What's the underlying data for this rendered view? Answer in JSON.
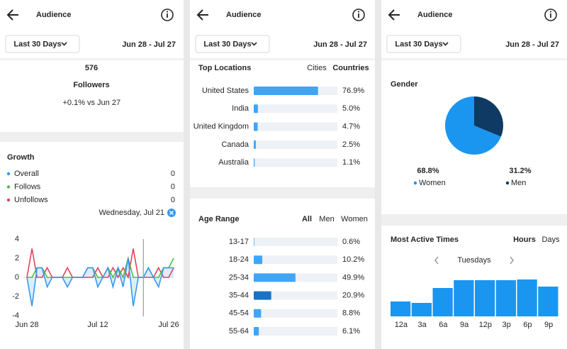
{
  "panels": [
    {
      "header": {
        "title": "Audience",
        "date_button": "Last 30 Days",
        "date_range": "Jun 28 - Jul 27"
      },
      "followers": {
        "count": 576,
        "label": "Followers",
        "change": "+0.1%",
        "compare": "vs Jun 27"
      },
      "growth": {
        "title": "Growth",
        "selected_date": "Wednesday, Jul 21",
        "chart_data": {
          "type": "line",
          "categories": [
            "Jun 28",
            null,
            null,
            null,
            null,
            null,
            null,
            null,
            null,
            null,
            null,
            null,
            null,
            null,
            "Jul 12",
            null,
            null,
            null,
            null,
            null,
            null,
            null,
            null,
            null,
            null,
            null,
            null,
            null,
            "Jul 26",
            null
          ],
          "series": [
            {
              "name": "Overall",
              "color": "#3897f0",
              "total": 0,
              "values": [
                0,
                -3,
                1,
                1,
                -1,
                0,
                0,
                0,
                -1,
                0,
                0,
                0,
                1,
                1,
                -1,
                0,
                1,
                -1,
                1,
                -1,
                2,
                -3,
                0,
                0,
                1,
                0,
                -1,
                1,
                1,
                1
              ]
            },
            {
              "name": "Follows",
              "color": "#4cb944",
              "total": 0,
              "values": [
                0,
                0,
                1,
                1,
                0,
                0,
                0,
                0,
                0,
                0,
                0,
                0,
                1,
                1,
                0,
                0,
                1,
                0,
                1,
                0,
                2,
                0,
                0,
                0,
                1,
                0,
                0,
                1,
                1,
                2
              ]
            },
            {
              "name": "Unfollows",
              "color": "#e2425c",
              "total": 0,
              "values": [
                0,
                3,
                0,
                0,
                1,
                0,
                0,
                0,
                1,
                0,
                0,
                0,
                0,
                0,
                1,
                0,
                0,
                1,
                0,
                1,
                0,
                3,
                0,
                0,
                0,
                0,
                1,
                0,
                0,
                1
              ]
            }
          ],
          "ylim": [
            -4,
            4
          ],
          "yticks": [
            4,
            2,
            0,
            -2,
            -4
          ],
          "selected_index": 23,
          "area_color": "#cfe5fb"
        }
      }
    },
    {
      "header": {
        "title": "Audience",
        "date_button": "Last 30 Days",
        "date_range": "Jun 28 - Jul 27"
      },
      "top_locations": {
        "title": "Top Locations",
        "tabs": [
          "Cities",
          "Countries"
        ],
        "active_tab": 1,
        "chart_data": {
          "type": "bar",
          "orientation": "horizontal",
          "categories": [
            "United States",
            "India",
            "United Kingdom",
            "Canada",
            "Australia"
          ],
          "values": [
            76.9,
            5.0,
            4.7,
            2.5,
            1.1
          ],
          "value_labels": [
            "76.9%",
            "5.0%",
            "4.7%",
            "2.5%",
            "1.1%"
          ],
          "xlim": [
            0,
            100
          ],
          "color": "#41a5f5"
        }
      },
      "age_range": {
        "title": "Age Range",
        "tabs": [
          "All",
          "Men",
          "Women"
        ],
        "active_tab": 0,
        "chart_data": {
          "type": "bar",
          "orientation": "horizontal",
          "categories": [
            "13-17",
            "18-24",
            "25-34",
            "35-44",
            "45-54",
            "55-64"
          ],
          "values": [
            0.6,
            10.2,
            49.9,
            20.9,
            8.8,
            6.1
          ],
          "value_labels": [
            "0.6%",
            "10.2%",
            "49.9%",
            "20.9%",
            "8.8%",
            "6.1%"
          ],
          "xlim": [
            0,
            100
          ],
          "color": "#41a5f5",
          "highlight_index": 3,
          "highlight_color": "#1a72c4"
        }
      }
    },
    {
      "header": {
        "title": "Audience",
        "date_button": "Last 30 Days",
        "date_range": "Jun 28 - Jul 27"
      },
      "gender": {
        "title": "Gender",
        "chart_data": {
          "type": "pie",
          "categories": [
            "Women",
            "Men"
          ],
          "values": [
            68.8,
            31.2
          ],
          "value_labels": [
            "68.8%",
            "31.2%"
          ],
          "colors": [
            "#1a96f0",
            "#0e3a63"
          ]
        }
      },
      "active_times": {
        "title": "Most Active Times",
        "tabs": [
          "Hours",
          "Days"
        ],
        "active_tab": 0,
        "day": "Tuesdays",
        "chart_data": {
          "type": "bar",
          "categories": [
            "12a",
            "3a",
            "6a",
            "9a",
            "12p",
            "3p",
            "6p",
            "9p"
          ],
          "values": [
            21,
            19,
            40,
            51,
            51,
            51,
            52,
            42
          ],
          "color": "#1a96f0"
        }
      }
    }
  ]
}
